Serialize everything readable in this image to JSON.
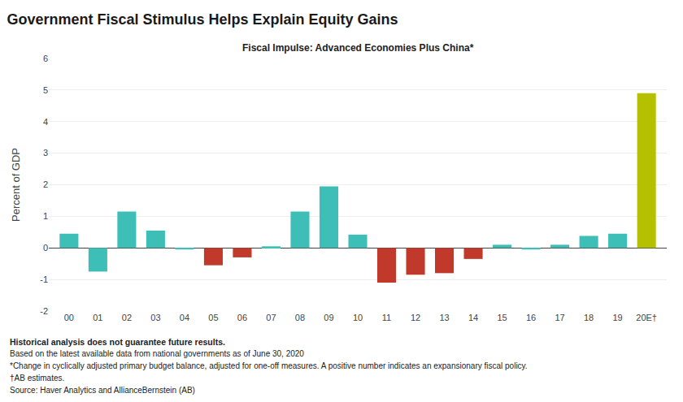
{
  "chart_data": {
    "type": "bar",
    "title": "Government Fiscal Stimulus Helps Explain Equity Gains",
    "subtitle": "Fiscal Impulse: Advanced Economies Plus China*",
    "ylabel": "Percent of GDP",
    "categories": [
      "00",
      "01",
      "02",
      "03",
      "04",
      "05",
      "06",
      "07",
      "08",
      "09",
      "10",
      "11",
      "12",
      "13",
      "14",
      "15",
      "16",
      "17",
      "18",
      "19",
      "20E†"
    ],
    "values": [
      0.45,
      -0.75,
      1.15,
      0.55,
      -0.05,
      -0.55,
      -0.3,
      0.05,
      1.15,
      1.95,
      0.42,
      -1.1,
      -0.85,
      -0.8,
      -0.35,
      0.1,
      -0.05,
      0.1,
      0.38,
      0.45,
      4.9
    ],
    "colors": [
      "#3dbfb8",
      "#3dbfb8",
      "#3dbfb8",
      "#3dbfb8",
      "#3dbfb8",
      "#c0392b",
      "#c0392b",
      "#3dbfb8",
      "#3dbfb8",
      "#3dbfb8",
      "#3dbfb8",
      "#c0392b",
      "#c0392b",
      "#c0392b",
      "#c0392b",
      "#3dbfb8",
      "#3dbfb8",
      "#3dbfb8",
      "#3dbfb8",
      "#3dbfb8",
      "#b5c000"
    ],
    "ylim": [
      -2.0,
      6.0
    ],
    "yticks": [
      -2,
      -1,
      0,
      1,
      2,
      3,
      4,
      5,
      6
    ],
    "grid": true,
    "annotations": [
      "Historical analysis does not guarantee future results.",
      "Based on the latest available data from national governments as of June 30, 2020",
      "*Change in cyclically adjusted primary budget balance, adjusted for one-off measures. A positive number indicates an expansionary fiscal policy.",
      "†AB estimates.",
      "Source: Haver Analytics and AllianceBernstein (AB)"
    ]
  }
}
